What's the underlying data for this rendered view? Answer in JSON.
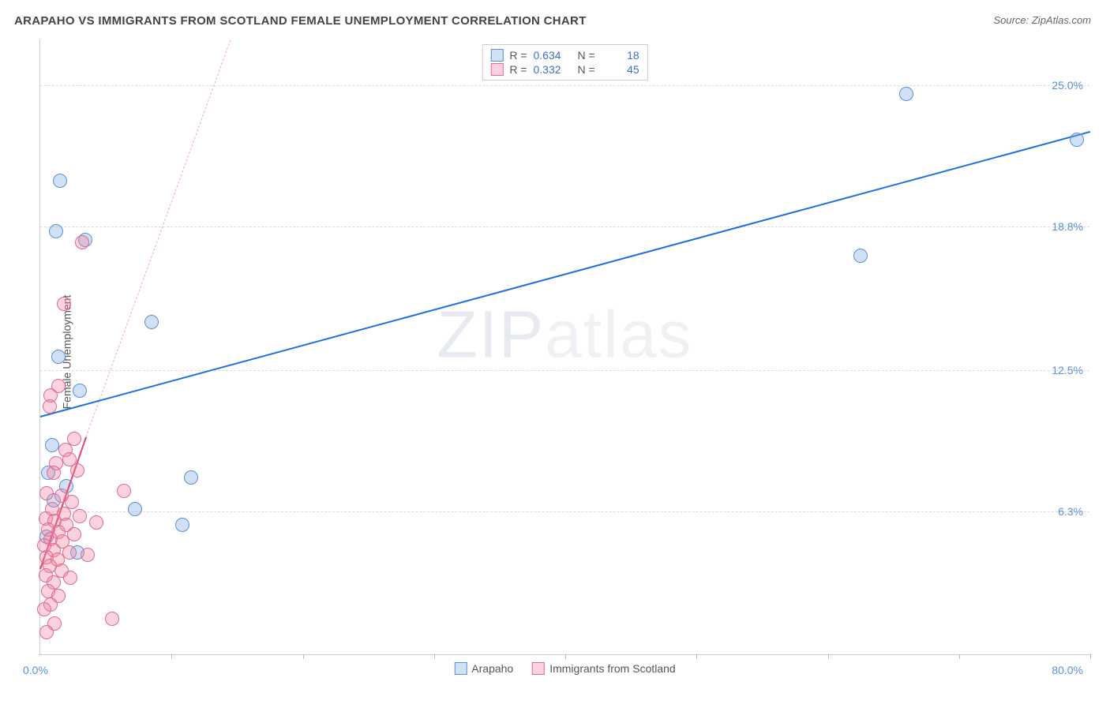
{
  "title": "ARAPAHO VS IMMIGRANTS FROM SCOTLAND FEMALE UNEMPLOYMENT CORRELATION CHART",
  "source_label": "Source: ZipAtlas.com",
  "y_axis_title": "Female Unemployment",
  "watermark_a": "ZIP",
  "watermark_b": "atlas",
  "chart": {
    "type": "scatter",
    "background_color": "#ffffff",
    "grid_color": "#dddddd",
    "axis_color": "#cccccc",
    "xlim": [
      0,
      80
    ],
    "ylim": [
      0,
      27
    ],
    "x_tick_positions": [
      10,
      20,
      30,
      40,
      50,
      60,
      70,
      80
    ],
    "y_ticks": [
      {
        "v": 6.3,
        "label": "6.3%"
      },
      {
        "v": 12.5,
        "label": "12.5%"
      },
      {
        "v": 18.8,
        "label": "18.8%"
      },
      {
        "v": 25.0,
        "label": "25.0%"
      }
    ],
    "x_label_min": "0.0%",
    "x_label_max": "80.0%",
    "marker_radius": 9,
    "marker_stroke_width": 1.5,
    "series": [
      {
        "name": "Arapaho",
        "fill": "rgba(120,165,225,0.35)",
        "stroke": "#5b8fd6",
        "trend_color": "#1e6fe0",
        "trend_width": 2,
        "trend_dashed": false,
        "R": "0.634",
        "N": "18",
        "trend": {
          "x1": 0,
          "y1": 10.5,
          "x2": 80,
          "y2": 23.0
        },
        "points": [
          {
            "x": 1.5,
            "y": 20.8
          },
          {
            "x": 1.2,
            "y": 18.6
          },
          {
            "x": 3.4,
            "y": 18.2
          },
          {
            "x": 8.5,
            "y": 14.6
          },
          {
            "x": 1.4,
            "y": 13.1
          },
          {
            "x": 3.0,
            "y": 11.6
          },
          {
            "x": 0.9,
            "y": 9.2
          },
          {
            "x": 0.6,
            "y": 8.0
          },
          {
            "x": 11.5,
            "y": 7.8
          },
          {
            "x": 7.2,
            "y": 6.4
          },
          {
            "x": 10.8,
            "y": 5.7
          },
          {
            "x": 2.8,
            "y": 4.5
          },
          {
            "x": 1.0,
            "y": 6.8
          },
          {
            "x": 0.5,
            "y": 5.2
          },
          {
            "x": 62.5,
            "y": 17.5
          },
          {
            "x": 66.0,
            "y": 24.6
          },
          {
            "x": 79.0,
            "y": 22.6
          },
          {
            "x": 2.0,
            "y": 7.4
          }
        ]
      },
      {
        "name": "Immigrants from Scotland",
        "fill": "rgba(240,130,160,0.35)",
        "stroke": "#e06a90",
        "trend_color": "#e24a78",
        "trend_width": 2,
        "trend_dashed": true,
        "dash_color": "rgba(226,74,120,0.45)",
        "R": "0.332",
        "N": "45",
        "trend": {
          "x1": 0,
          "y1": 3.8,
          "x2": 3.5,
          "y2": 9.6
        },
        "dash_ext": {
          "x1": 3.5,
          "y1": 9.6,
          "x2": 14.5,
          "y2": 27.0
        },
        "points": [
          {
            "x": 3.2,
            "y": 18.1
          },
          {
            "x": 1.8,
            "y": 15.4
          },
          {
            "x": 0.8,
            "y": 11.4
          },
          {
            "x": 1.4,
            "y": 11.8
          },
          {
            "x": 0.7,
            "y": 10.9
          },
          {
            "x": 2.6,
            "y": 9.5
          },
          {
            "x": 1.9,
            "y": 9.0
          },
          {
            "x": 1.2,
            "y": 8.4
          },
          {
            "x": 2.2,
            "y": 8.6
          },
          {
            "x": 1.0,
            "y": 8.0
          },
          {
            "x": 2.8,
            "y": 8.1
          },
          {
            "x": 6.4,
            "y": 7.2
          },
          {
            "x": 0.5,
            "y": 7.1
          },
          {
            "x": 1.6,
            "y": 7.0
          },
          {
            "x": 2.4,
            "y": 6.7
          },
          {
            "x": 0.9,
            "y": 6.4
          },
          {
            "x": 1.8,
            "y": 6.2
          },
          {
            "x": 3.0,
            "y": 6.1
          },
          {
            "x": 0.4,
            "y": 6.0
          },
          {
            "x": 1.1,
            "y": 5.9
          },
          {
            "x": 2.0,
            "y": 5.7
          },
          {
            "x": 4.3,
            "y": 5.8
          },
          {
            "x": 0.6,
            "y": 5.5
          },
          {
            "x": 1.4,
            "y": 5.4
          },
          {
            "x": 2.6,
            "y": 5.3
          },
          {
            "x": 0.8,
            "y": 5.1
          },
          {
            "x": 1.7,
            "y": 5.0
          },
          {
            "x": 0.3,
            "y": 4.8
          },
          {
            "x": 1.0,
            "y": 4.6
          },
          {
            "x": 2.2,
            "y": 4.5
          },
          {
            "x": 0.5,
            "y": 4.3
          },
          {
            "x": 1.3,
            "y": 4.2
          },
          {
            "x": 3.6,
            "y": 4.4
          },
          {
            "x": 0.7,
            "y": 3.9
          },
          {
            "x": 1.6,
            "y": 3.7
          },
          {
            "x": 0.4,
            "y": 3.5
          },
          {
            "x": 1.0,
            "y": 3.2
          },
          {
            "x": 2.3,
            "y": 3.4
          },
          {
            "x": 0.6,
            "y": 2.8
          },
          {
            "x": 1.4,
            "y": 2.6
          },
          {
            "x": 0.8,
            "y": 2.2
          },
          {
            "x": 0.3,
            "y": 2.0
          },
          {
            "x": 5.5,
            "y": 1.6
          },
          {
            "x": 1.1,
            "y": 1.4
          },
          {
            "x": 0.5,
            "y": 1.0
          }
        ]
      }
    ]
  },
  "legend_top_labels": {
    "R": "R =",
    "N": "N ="
  },
  "legend_bottom": [
    {
      "label": "Arapaho",
      "fill": "rgba(120,165,225,0.35)",
      "stroke": "#5b8fd6"
    },
    {
      "label": "Immigrants from Scotland",
      "fill": "rgba(240,130,160,0.35)",
      "stroke": "#e06a90"
    }
  ]
}
